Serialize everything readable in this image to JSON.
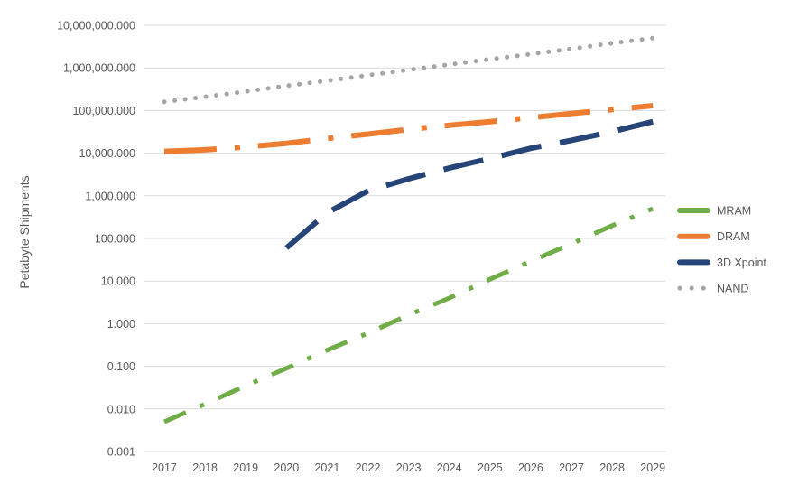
{
  "chart_data": {
    "type": "line",
    "y_scale": "log",
    "title": "",
    "xlabel": "",
    "ylabel": "Petabyte Shipments",
    "ylim": [
      0.001,
      10000000
    ],
    "grid": "horizontal",
    "legend_position": "right",
    "x": [
      2017,
      2018,
      2019,
      2020,
      2021,
      2022,
      2023,
      2024,
      2025,
      2026,
      2027,
      2028,
      2029
    ],
    "y_ticks": [
      {
        "value": 10000000,
        "label": "10,000,000.000"
      },
      {
        "value": 1000000,
        "label": "1,000,000.000"
      },
      {
        "value": 100000,
        "label": "100,000.000"
      },
      {
        "value": 10000,
        "label": "10,000.000"
      },
      {
        "value": 1000,
        "label": "1,000.000"
      },
      {
        "value": 100,
        "label": "100.000"
      },
      {
        "value": 10,
        "label": "10.000"
      },
      {
        "value": 1,
        "label": "1.000"
      },
      {
        "value": 0.1,
        "label": "0.100"
      },
      {
        "value": 0.01,
        "label": "0.010"
      },
      {
        "value": 0.001,
        "label": "0.001"
      }
    ],
    "series": [
      {
        "name": "MRAM",
        "color": "#70AD47",
        "line_style": "dash-dot",
        "values": [
          0.005,
          0.013,
          0.035,
          0.09,
          0.24,
          0.6,
          1.6,
          4,
          11,
          29,
          75,
          200,
          500
        ]
      },
      {
        "name": "DRAM",
        "color": "#ED7D31",
        "line_style": "long-dash-dot",
        "values": [
          11000,
          12000,
          14000,
          17000,
          22000,
          28000,
          36000,
          45000,
          55000,
          68000,
          85000,
          105000,
          130000
        ]
      },
      {
        "name": "3D Xpoint",
        "color": "#264478",
        "line_style": "long-dash",
        "values": [
          null,
          null,
          null,
          60,
          400,
          1300,
          2500,
          4500,
          7500,
          13000,
          20000,
          32000,
          55000
        ]
      },
      {
        "name": "NAND",
        "color": "#A5A5A5",
        "line_style": "dot",
        "values": [
          160000,
          210000,
          280000,
          380000,
          500000,
          670000,
          900000,
          1200000,
          1600000,
          2100000,
          2800000,
          3800000,
          5000000
        ]
      }
    ],
    "style": {
      "grid_color": "#D9D9D9",
      "text_color": "#595959",
      "background": "#FFFFFF"
    }
  }
}
